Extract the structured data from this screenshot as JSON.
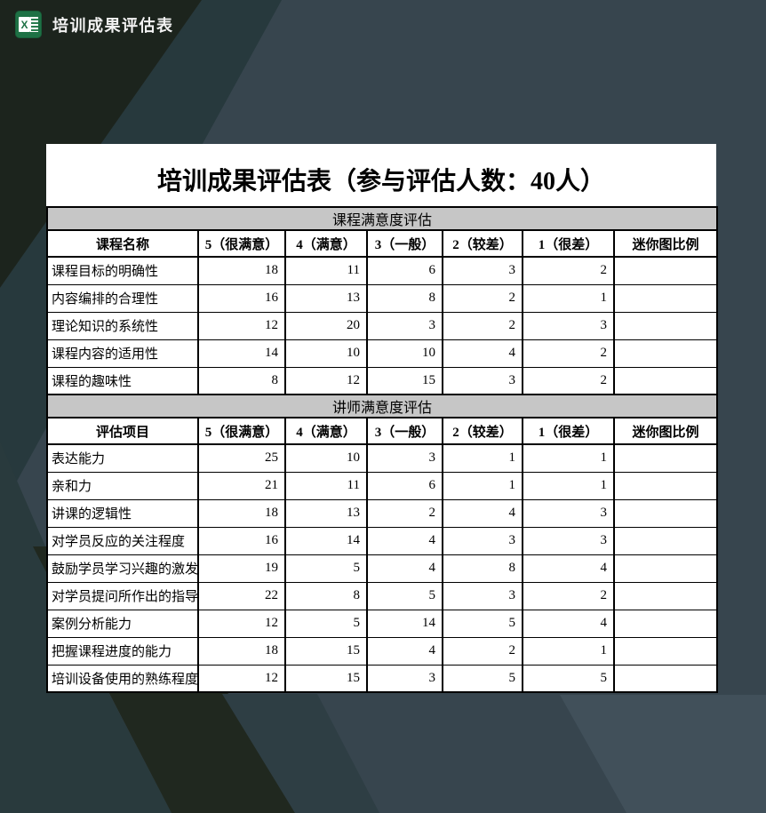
{
  "app_header": {
    "icon": "excel-icon",
    "icon_letter": "X",
    "title": "培训成果评估表"
  },
  "document": {
    "title": "培训成果评估表（参与评估人数：40人）",
    "rating_headers": [
      "5（很满意）",
      "4（满意）",
      "3（一般）",
      "2（较差）",
      "1（很差）"
    ],
    "mini_chart_header": "迷你图比例",
    "sections": [
      {
        "title": "课程满意度评估",
        "item_header": "课程名称",
        "rows": [
          {
            "label": "课程目标的明确性",
            "values": [
              18,
              11,
              6,
              3,
              2
            ],
            "mini": ""
          },
          {
            "label": "内容编排的合理性",
            "values": [
              16,
              13,
              8,
              2,
              1
            ],
            "mini": ""
          },
          {
            "label": "理论知识的系统性",
            "values": [
              12,
              20,
              3,
              2,
              3
            ],
            "mini": ""
          },
          {
            "label": "课程内容的适用性",
            "values": [
              14,
              10,
              10,
              4,
              2
            ],
            "mini": ""
          },
          {
            "label": "课程的趣味性",
            "values": [
              8,
              12,
              15,
              3,
              2
            ],
            "mini": ""
          }
        ]
      },
      {
        "title": "讲师满意度评估",
        "item_header": "评估项目",
        "rows": [
          {
            "label": "表达能力",
            "values": [
              25,
              10,
              3,
              1,
              1
            ],
            "mini": ""
          },
          {
            "label": "亲和力",
            "values": [
              21,
              11,
              6,
              1,
              1
            ],
            "mini": ""
          },
          {
            "label": "讲课的逻辑性",
            "values": [
              18,
              13,
              2,
              4,
              3
            ],
            "mini": ""
          },
          {
            "label": "对学员反应的关注程度",
            "values": [
              16,
              14,
              4,
              3,
              3
            ],
            "mini": ""
          },
          {
            "label": "鼓励学员学习兴趣的激发",
            "values": [
              19,
              5,
              4,
              8,
              4
            ],
            "mini": ""
          },
          {
            "label": "对学员提问所作出的指导",
            "values": [
              22,
              8,
              5,
              3,
              2
            ],
            "mini": ""
          },
          {
            "label": "案例分析能力",
            "values": [
              12,
              5,
              14,
              5,
              4
            ],
            "mini": ""
          },
          {
            "label": "把握课程进度的能力",
            "values": [
              18,
              15,
              4,
              2,
              1
            ],
            "mini": ""
          },
          {
            "label": "培训设备使用的熟练程度",
            "values": [
              12,
              15,
              3,
              5,
              5
            ],
            "mini": ""
          }
        ]
      }
    ]
  },
  "colors": {
    "background_base": "#37454e",
    "background_dark_corner": "#1c241d",
    "background_teal_ribbon": "#27393d",
    "background_teal_wedge": "#293a3d",
    "background_dark_ribbon": "#20281f",
    "background_light_wedge": "#41505a",
    "excel_green": "#1e7145",
    "section_header_bg": "#c6c6c6",
    "table_border": "#000000",
    "header_text": "#f2f2f2"
  }
}
